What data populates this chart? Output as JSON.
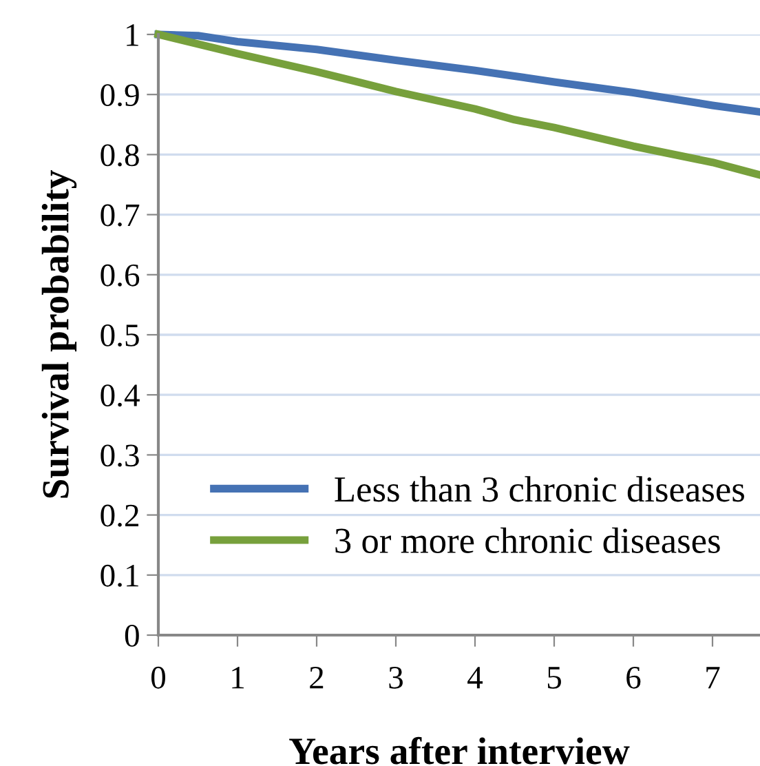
{
  "chart_data": {
    "type": "line",
    "xlabel": "Years after interview",
    "ylabel": "Survival probability",
    "series": [
      {
        "name": "Less than 3 chronic diseases",
        "color": "#4572b4",
        "x": [
          0,
          0.5,
          1,
          2,
          3,
          4,
          5,
          6,
          7,
          7.6
        ],
        "values": [
          1,
          0.998,
          0.988,
          0.975,
          0.957,
          0.94,
          0.921,
          0.903,
          0.882,
          0.871
        ]
      },
      {
        "name": "3 or more chronic diseases",
        "color": "#77a03c",
        "x": [
          0,
          1,
          2,
          3,
          4,
          4.5,
          5,
          6,
          7,
          7.6
        ],
        "values": [
          1,
          0.968,
          0.938,
          0.905,
          0.876,
          0.858,
          0.845,
          0.814,
          0.787,
          0.766
        ]
      }
    ],
    "xlim": [
      0,
      7.6
    ],
    "xticks": [
      0,
      1,
      2,
      3,
      4,
      5,
      6,
      7
    ],
    "ylim": [
      0,
      1
    ],
    "yticks": [
      0,
      0.1,
      0.2,
      0.3,
      0.4,
      0.5,
      0.6,
      0.7,
      0.8,
      0.9,
      1
    ],
    "grid": "y",
    "legend": "bottom right",
    "line_style": "solid",
    "marker": "none"
  }
}
